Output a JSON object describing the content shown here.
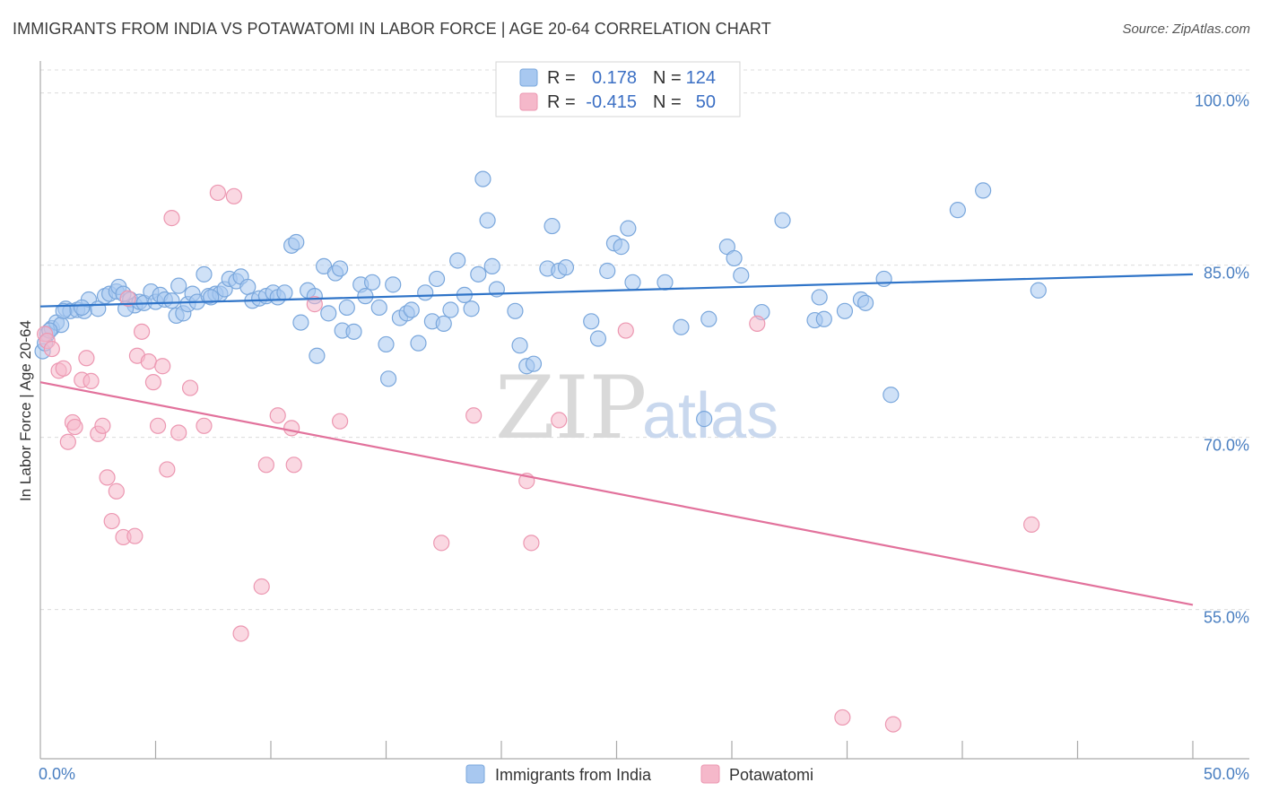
{
  "title": "IMMIGRANTS FROM INDIA VS POTAWATOMI IN LABOR FORCE | AGE 20-64 CORRELATION CHART",
  "source": "Source: ZipAtlas.com",
  "watermark": {
    "zip": "ZIP",
    "atlas": "atlas"
  },
  "colors": {
    "india_fill": "#a8c8f0",
    "india_stroke": "#7aa7dc",
    "india_line": "#2f74c8",
    "pota_fill": "#f5b8ca",
    "pota_stroke": "#ec97b1",
    "pota_line": "#e2729c",
    "grid": "#dcdcdc",
    "tick_text": "#4a7fc1"
  },
  "legend": {
    "rows": [
      {
        "r_label": "R =",
        "r_value": "0.178",
        "n_label": "N =",
        "n_value": "124"
      },
      {
        "r_label": "R =",
        "r_value": "-0.415",
        "n_label": "N =",
        "n_value": "50"
      }
    ]
  },
  "bottom_legend": [
    "Immigrants from India",
    "Potawatomi"
  ],
  "chart_data": {
    "type": "scatter",
    "xlabel": "",
    "ylabel": "In Labor Force | Age 20-64",
    "xlim": [
      0,
      50
    ],
    "ylim": [
      42,
      102
    ],
    "x_tick_labels": [
      "0.0%",
      "50.0%"
    ],
    "y_ticks": [
      55,
      70,
      85,
      100
    ],
    "y_tick_labels": [
      "55.0%",
      "70.0%",
      "85.0%",
      "100.0%"
    ],
    "grid": true,
    "series": [
      {
        "name": "Immigrants from India",
        "trend": [
          [
            0,
            81.4
          ],
          [
            50,
            84.2
          ]
        ],
        "points": [
          [
            0.1,
            77.5
          ],
          [
            0.3,
            79.0
          ],
          [
            0.5,
            79.5
          ],
          [
            0.7,
            80.0
          ],
          [
            0.9,
            79.8
          ],
          [
            1.1,
            81.2
          ],
          [
            1.3,
            81.0
          ],
          [
            1.6,
            81.1
          ],
          [
            1.9,
            81.0
          ],
          [
            2.1,
            82.0
          ],
          [
            2.5,
            81.2
          ],
          [
            2.8,
            82.3
          ],
          [
            3.0,
            82.5
          ],
          [
            3.3,
            82.7
          ],
          [
            3.4,
            83.1
          ],
          [
            3.6,
            82.5
          ],
          [
            3.9,
            82.0
          ],
          [
            4.1,
            81.5
          ],
          [
            4.3,
            81.8
          ],
          [
            4.5,
            81.7
          ],
          [
            4.8,
            82.7
          ],
          [
            5.0,
            81.8
          ],
          [
            5.2,
            82.4
          ],
          [
            5.4,
            82.0
          ],
          [
            5.7,
            81.9
          ],
          [
            5.9,
            80.6
          ],
          [
            6.0,
            83.2
          ],
          [
            6.2,
            80.8
          ],
          [
            6.4,
            81.6
          ],
          [
            6.6,
            82.5
          ],
          [
            6.8,
            81.8
          ],
          [
            7.1,
            84.2
          ],
          [
            7.3,
            82.3
          ],
          [
            7.6,
            82.5
          ],
          [
            7.8,
            82.5
          ],
          [
            8.0,
            82.9
          ],
          [
            8.2,
            83.8
          ],
          [
            8.5,
            83.6
          ],
          [
            8.7,
            84.0
          ],
          [
            9.0,
            83.1
          ],
          [
            9.2,
            81.9
          ],
          [
            9.5,
            82.1
          ],
          [
            9.8,
            82.3
          ],
          [
            10.1,
            82.6
          ],
          [
            10.3,
            82.2
          ],
          [
            10.6,
            82.6
          ],
          [
            10.9,
            86.7
          ],
          [
            11.1,
            87.0
          ],
          [
            11.3,
            80.0
          ],
          [
            11.6,
            82.8
          ],
          [
            11.9,
            82.3
          ],
          [
            12.0,
            77.1
          ],
          [
            12.3,
            84.9
          ],
          [
            12.5,
            80.8
          ],
          [
            12.8,
            84.3
          ],
          [
            13.0,
            84.7
          ],
          [
            13.1,
            79.3
          ],
          [
            13.3,
            81.3
          ],
          [
            13.6,
            79.2
          ],
          [
            13.9,
            83.3
          ],
          [
            14.1,
            82.3
          ],
          [
            14.4,
            83.5
          ],
          [
            14.7,
            81.3
          ],
          [
            15.0,
            78.1
          ],
          [
            15.1,
            75.1
          ],
          [
            15.3,
            83.3
          ],
          [
            15.6,
            80.4
          ],
          [
            15.9,
            80.8
          ],
          [
            16.1,
            81.1
          ],
          [
            16.4,
            78.2
          ],
          [
            16.7,
            82.6
          ],
          [
            17.0,
            80.1
          ],
          [
            17.2,
            83.8
          ],
          [
            17.5,
            79.9
          ],
          [
            17.8,
            81.1
          ],
          [
            18.1,
            85.4
          ],
          [
            18.4,
            82.4
          ],
          [
            18.7,
            81.2
          ],
          [
            19.0,
            84.2
          ],
          [
            19.2,
            92.5
          ],
          [
            19.4,
            88.9
          ],
          [
            19.6,
            84.9
          ],
          [
            19.8,
            82.9
          ],
          [
            20.6,
            81.0
          ],
          [
            20.8,
            78.0
          ],
          [
            21.1,
            76.2
          ],
          [
            21.4,
            76.4
          ],
          [
            22.0,
            84.7
          ],
          [
            22.2,
            88.4
          ],
          [
            22.5,
            84.5
          ],
          [
            22.8,
            84.8
          ],
          [
            23.9,
            80.1
          ],
          [
            24.2,
            78.6
          ],
          [
            24.6,
            84.5
          ],
          [
            24.9,
            86.9
          ],
          [
            25.2,
            86.6
          ],
          [
            25.5,
            88.2
          ],
          [
            25.7,
            83.5
          ],
          [
            27.1,
            83.5
          ],
          [
            27.8,
            79.6
          ],
          [
            28.8,
            71.6
          ],
          [
            29.0,
            80.3
          ],
          [
            29.8,
            86.6
          ],
          [
            30.1,
            85.6
          ],
          [
            30.4,
            84.1
          ],
          [
            31.3,
            80.9
          ],
          [
            32.2,
            88.9
          ],
          [
            33.6,
            80.2
          ],
          [
            33.8,
            82.2
          ],
          [
            34.0,
            80.3
          ],
          [
            34.9,
            81.0
          ],
          [
            35.6,
            82.0
          ],
          [
            35.8,
            81.7
          ],
          [
            36.6,
            83.8
          ],
          [
            36.9,
            73.7
          ],
          [
            39.8,
            89.8
          ],
          [
            40.9,
            91.5
          ],
          [
            43.3,
            82.8
          ],
          [
            0.2,
            78.2
          ],
          [
            0.4,
            79.3
          ],
          [
            1.0,
            81.0
          ],
          [
            1.8,
            81.3
          ],
          [
            3.7,
            81.2
          ],
          [
            7.4,
            82.2
          ]
        ]
      },
      {
        "name": "Potawatomi",
        "trend": [
          [
            0,
            74.8
          ],
          [
            50,
            55.4
          ]
        ],
        "points": [
          [
            0.2,
            79.0
          ],
          [
            0.3,
            78.4
          ],
          [
            0.5,
            77.7
          ],
          [
            0.8,
            75.8
          ],
          [
            1.0,
            76.0
          ],
          [
            1.2,
            69.6
          ],
          [
            1.4,
            71.3
          ],
          [
            1.5,
            70.9
          ],
          [
            1.8,
            75.0
          ],
          [
            2.0,
            76.9
          ],
          [
            2.2,
            74.9
          ],
          [
            2.5,
            70.3
          ],
          [
            2.7,
            71.0
          ],
          [
            2.9,
            66.5
          ],
          [
            3.1,
            62.7
          ],
          [
            3.3,
            65.3
          ],
          [
            3.6,
            61.3
          ],
          [
            3.8,
            82.1
          ],
          [
            4.1,
            61.4
          ],
          [
            4.2,
            77.1
          ],
          [
            4.4,
            79.2
          ],
          [
            4.7,
            76.6
          ],
          [
            4.9,
            74.8
          ],
          [
            5.1,
            71.0
          ],
          [
            5.3,
            76.2
          ],
          [
            5.5,
            67.2
          ],
          [
            5.7,
            89.1
          ],
          [
            6.0,
            70.4
          ],
          [
            6.5,
            74.3
          ],
          [
            7.1,
            71.0
          ],
          [
            7.7,
            91.3
          ],
          [
            8.4,
            91.0
          ],
          [
            8.7,
            52.9
          ],
          [
            9.6,
            57.0
          ],
          [
            9.8,
            67.6
          ],
          [
            10.3,
            71.9
          ],
          [
            10.9,
            70.8
          ],
          [
            11.0,
            67.6
          ],
          [
            11.9,
            81.6
          ],
          [
            13.0,
            71.4
          ],
          [
            17.4,
            60.8
          ],
          [
            18.8,
            71.9
          ],
          [
            21.1,
            66.2
          ],
          [
            21.3,
            60.8
          ],
          [
            22.5,
            71.5
          ],
          [
            25.4,
            79.3
          ],
          [
            31.1,
            79.9
          ],
          [
            34.8,
            45.6
          ],
          [
            37.0,
            45.0
          ],
          [
            43.0,
            62.4
          ]
        ]
      }
    ]
  }
}
